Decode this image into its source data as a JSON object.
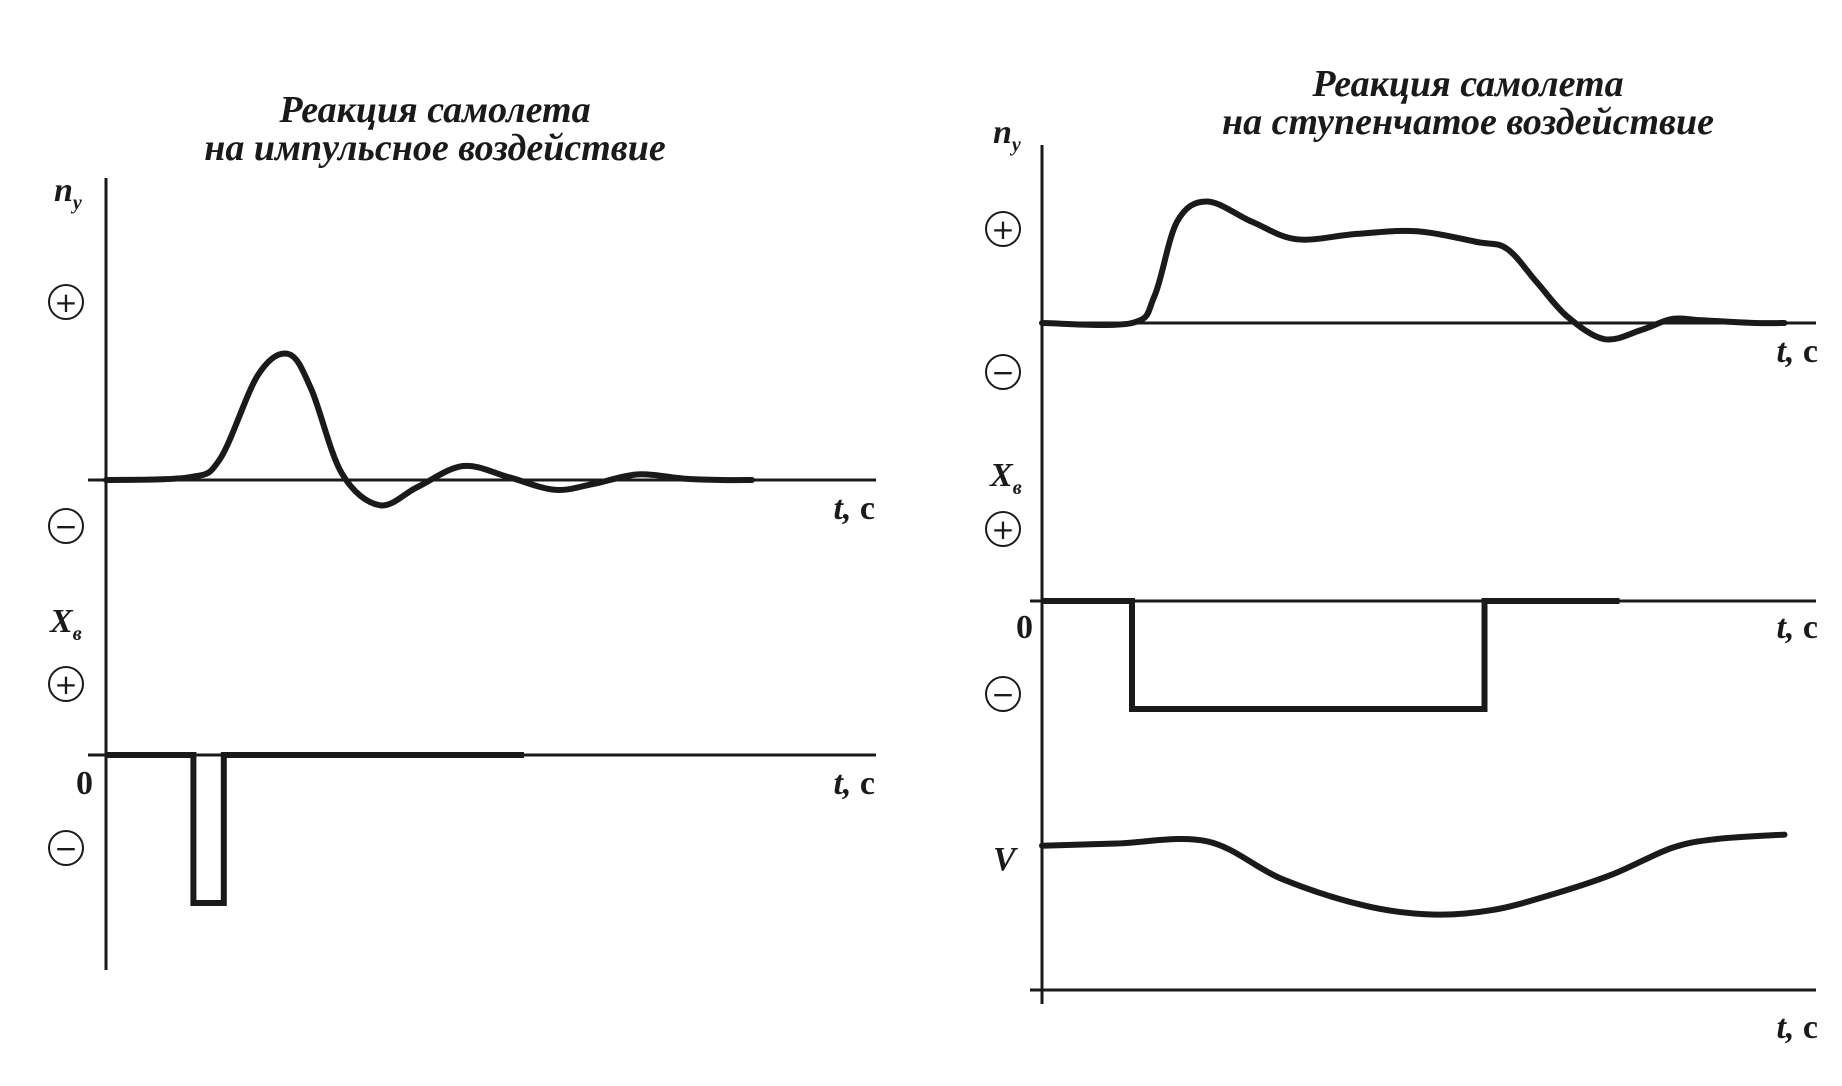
{
  "chart_data": [
    {
      "type": "line",
      "title": "Реакция самолета на импульсное воздействие",
      "title_lines": [
        "Реакция самолета",
        "на импульсное воздействие"
      ],
      "plus_sign": "+",
      "minus_sign": "−",
      "grid": false,
      "panels": [
        {
          "ylabel": "n",
          "ylabel_sub": "y",
          "xlabel_main": "t,",
          "xlabel_unit": "с",
          "y_range": [
            -1,
            1
          ],
          "x_range": [
            0,
            10
          ],
          "series": [
            {
              "x": [
                0,
                1.1,
                1.5,
                2.0,
                2.4,
                2.7,
                3.1,
                3.6,
                4.1,
                4.7,
                5.3,
                5.9,
                6.4,
                7.0,
                7.6,
                8.1,
                8.5
              ],
              "values": [
                0,
                0.02,
                0.15,
                0.75,
                0.9,
                0.65,
                0.05,
                -0.18,
                -0.05,
                0.1,
                0.02,
                -0.07,
                -0.03,
                0.04,
                0.01,
                0,
                0
              ]
            }
          ]
        },
        {
          "ylabel": "X",
          "ylabel_sub": "в",
          "xlabel_main": "t,",
          "xlabel_unit": "с",
          "origin_label": "0",
          "y_range": [
            -1,
            1
          ],
          "x_range": [
            0,
            10
          ],
          "series": [
            {
              "x": [
                0,
                1.15,
                1.15,
                1.55,
                1.55,
                5.5
              ],
              "values": [
                0,
                0,
                -1,
                -1,
                0,
                0
              ]
            }
          ]
        }
      ]
    },
    {
      "type": "line",
      "title": "Реакция самолета на ступенчатое воздействие",
      "title_lines": [
        "Реакция самолета",
        "на ступенчатое воздействие"
      ],
      "plus_sign": "+",
      "minus_sign": "−",
      "grid": false,
      "panels": [
        {
          "ylabel": "n",
          "ylabel_sub": "y",
          "xlabel_main": "t,",
          "xlabel_unit": "с",
          "y_range": [
            -1,
            1
          ],
          "x_range": [
            0,
            10
          ],
          "series": [
            {
              "x": [
                0,
                1.2,
                1.5,
                1.8,
                2.2,
                2.8,
                3.4,
                4.2,
                5.0,
                5.8,
                6.2,
                6.6,
                7.0,
                7.5,
                8.0,
                8.4,
                8.8,
                9.5,
                9.9
              ],
              "values": [
                0,
                0,
                0.2,
                0.75,
                0.9,
                0.75,
                0.62,
                0.66,
                0.68,
                0.6,
                0.55,
                0.3,
                0.05,
                -0.12,
                -0.05,
                0.03,
                0.02,
                0,
                0
              ]
            }
          ]
        },
        {
          "ylabel": "X",
          "ylabel_sub": "в",
          "xlabel_main": "t,",
          "xlabel_unit": "с",
          "origin_label": "0",
          "y_range": [
            -1,
            1
          ],
          "x_range": [
            0,
            10
          ],
          "series": [
            {
              "x": [
                0,
                1.2,
                1.2,
                5.9,
                5.9,
                7.7
              ],
              "values": [
                0,
                0,
                -1,
                -1,
                0,
                0
              ]
            }
          ]
        },
        {
          "ylabel": "V",
          "xlabel_main": "t,",
          "xlabel_unit": "с",
          "y_range": [
            -1,
            1
          ],
          "x_range": [
            0,
            10
          ],
          "series": [
            {
              "x": [
                0,
                1.0,
                2.2,
                3.2,
                4.3,
                5.2,
                6.0,
                6.8,
                7.6,
                8.4,
                9.0,
                9.9
              ],
              "values": [
                0.65,
                0.66,
                0.67,
                0.5,
                0.38,
                0.34,
                0.36,
                0.43,
                0.52,
                0.64,
                0.68,
                0.7
              ]
            }
          ]
        }
      ]
    }
  ]
}
